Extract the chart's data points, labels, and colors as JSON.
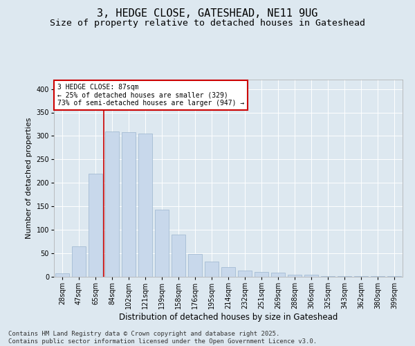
{
  "title1": "3, HEDGE CLOSE, GATESHEAD, NE11 9UG",
  "title2": "Size of property relative to detached houses in Gateshead",
  "xlabel": "Distribution of detached houses by size in Gateshead",
  "ylabel": "Number of detached properties",
  "categories": [
    "28sqm",
    "47sqm",
    "65sqm",
    "84sqm",
    "102sqm",
    "121sqm",
    "139sqm",
    "158sqm",
    "176sqm",
    "195sqm",
    "214sqm",
    "232sqm",
    "251sqm",
    "269sqm",
    "288sqm",
    "306sqm",
    "325sqm",
    "343sqm",
    "362sqm",
    "380sqm",
    "399sqm"
  ],
  "values": [
    8,
    65,
    220,
    310,
    308,
    305,
    143,
    90,
    48,
    33,
    20,
    14,
    10,
    9,
    4,
    5,
    2,
    1,
    2,
    1,
    1
  ],
  "bar_color": "#c8d8eb",
  "bar_edge_color": "#9ab5ce",
  "red_line_color": "#cc0000",
  "annotation_text": "3 HEDGE CLOSE: 87sqm\n← 25% of detached houses are smaller (329)\n73% of semi-detached houses are larger (947) →",
  "annotation_box_color": "#ffffff",
  "annotation_box_edge_color": "#cc0000",
  "background_color": "#dde8f0",
  "plot_bg_color": "#dde8f0",
  "footer_text": "Contains HM Land Registry data © Crown copyright and database right 2025.\nContains public sector information licensed under the Open Government Licence v3.0.",
  "ylim": [
    0,
    420
  ],
  "yticks": [
    0,
    50,
    100,
    150,
    200,
    250,
    300,
    350,
    400
  ],
  "title1_fontsize": 11,
  "title2_fontsize": 9.5,
  "xlabel_fontsize": 8.5,
  "ylabel_fontsize": 8,
  "tick_fontsize": 7,
  "annotation_fontsize": 7,
  "footer_fontsize": 6.5
}
